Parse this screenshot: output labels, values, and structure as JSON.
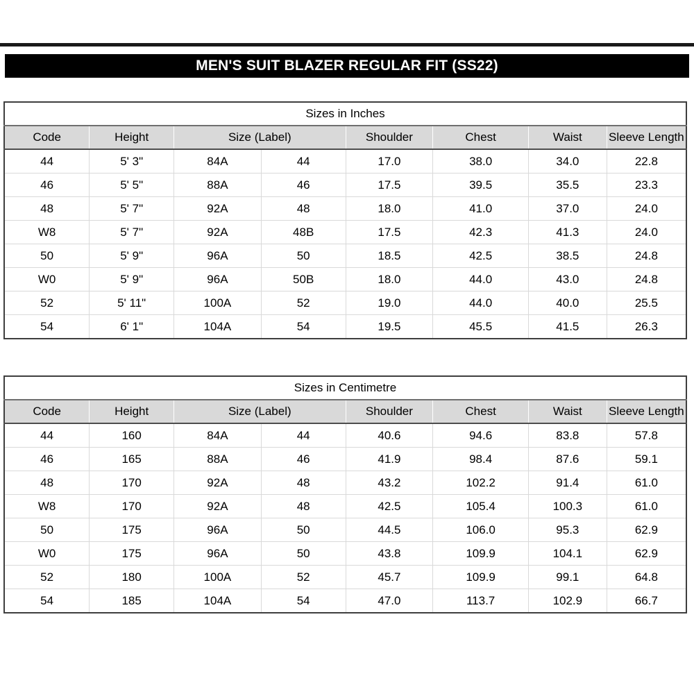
{
  "title_bar": {
    "label": "MEN'S SUIT BLAZER REGULAR FIT (SS22)"
  },
  "colors": {
    "banner_bg": "#000000",
    "banner_text": "#ffffff",
    "header_row_bg": "#d9d9d9",
    "outer_border": "#3e3e3e",
    "grid_line": "#d9d9d9"
  },
  "tables": [
    {
      "title": "Sizes in Inches",
      "columns": [
        {
          "key": "code",
          "label": "Code"
        },
        {
          "key": "height",
          "label": "Height"
        },
        {
          "key": "size-label",
          "label": "Size (Label)",
          "span": 2
        },
        {
          "key": "shoulder",
          "label": "Shoulder"
        },
        {
          "key": "chest",
          "label": "Chest"
        },
        {
          "key": "waist",
          "label": "Waist"
        },
        {
          "key": "sleeve-length",
          "label": "Sleeve Length"
        }
      ],
      "rows": [
        [
          "44",
          "5' 3\"",
          "84A",
          "44",
          "17.0",
          "38.0",
          "34.0",
          "22.8"
        ],
        [
          "46",
          "5' 5\"",
          "88A",
          "46",
          "17.5",
          "39.5",
          "35.5",
          "23.3"
        ],
        [
          "48",
          "5' 7\"",
          "92A",
          "48",
          "18.0",
          "41.0",
          "37.0",
          "24.0"
        ],
        [
          "W8",
          "5' 7\"",
          "92A",
          "48B",
          "17.5",
          "42.3",
          "41.3",
          "24.0"
        ],
        [
          "50",
          "5' 9\"",
          "96A",
          "50",
          "18.5",
          "42.5",
          "38.5",
          "24.8"
        ],
        [
          "W0",
          "5' 9\"",
          "96A",
          "50B",
          "18.0",
          "44.0",
          "43.0",
          "24.8"
        ],
        [
          "52",
          "5' 11\"",
          "100A",
          "52",
          "19.0",
          "44.0",
          "40.0",
          "25.5"
        ],
        [
          "54",
          "6' 1\"",
          "104A",
          "54",
          "19.5",
          "45.5",
          "41.5",
          "26.3"
        ]
      ]
    },
    {
      "title": "Sizes in Centimetre",
      "columns": [
        {
          "key": "code",
          "label": "Code"
        },
        {
          "key": "height",
          "label": "Height"
        },
        {
          "key": "size-label",
          "label": "Size (Label)",
          "span": 2
        },
        {
          "key": "shoulder",
          "label": "Shoulder"
        },
        {
          "key": "chest",
          "label": "Chest"
        },
        {
          "key": "waist",
          "label": "Waist"
        },
        {
          "key": "sleeve-length",
          "label": "Sleeve Length"
        }
      ],
      "rows": [
        [
          "44",
          "160",
          "84A",
          "44",
          "40.6",
          "94.6",
          "83.8",
          "57.8"
        ],
        [
          "46",
          "165",
          "88A",
          "46",
          "41.9",
          "98.4",
          "87.6",
          "59.1"
        ],
        [
          "48",
          "170",
          "92A",
          "48",
          "43.2",
          "102.2",
          "91.4",
          "61.0"
        ],
        [
          "W8",
          "170",
          "92A",
          "48",
          "42.5",
          "105.4",
          "100.3",
          "61.0"
        ],
        [
          "50",
          "175",
          "96A",
          "50",
          "44.5",
          "106.0",
          "95.3",
          "62.9"
        ],
        [
          "W0",
          "175",
          "96A",
          "50",
          "43.8",
          "109.9",
          "104.1",
          "62.9"
        ],
        [
          "52",
          "180",
          "100A",
          "52",
          "45.7",
          "109.9",
          "99.1",
          "64.8"
        ],
        [
          "54",
          "185",
          "104A",
          "54",
          "47.0",
          "113.7",
          "102.9",
          "66.7"
        ]
      ]
    }
  ]
}
